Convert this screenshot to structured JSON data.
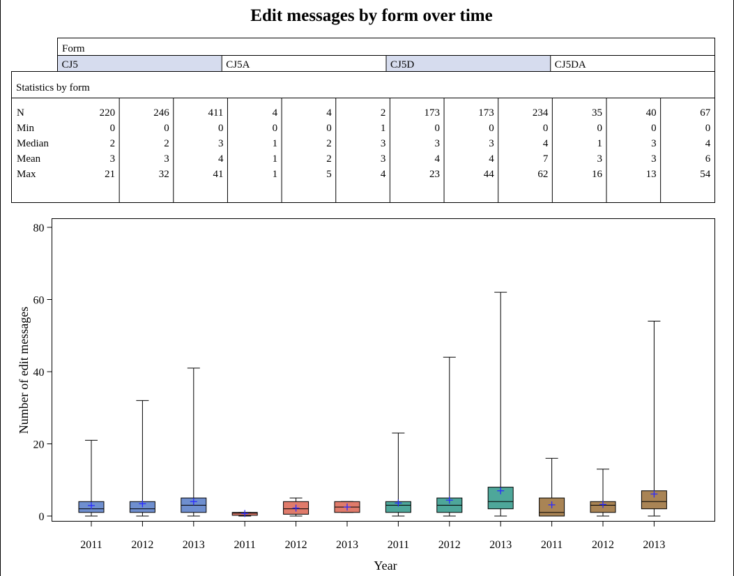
{
  "chart_data": {
    "type": "box",
    "title": "Edit messages by form over time",
    "panel_header": "Form",
    "forms": [
      {
        "name": "CJ5",
        "highlighted": true
      },
      {
        "name": "CJ5A",
        "highlighted": false
      },
      {
        "name": "CJ5D",
        "highlighted": true
      },
      {
        "name": "CJ5DA",
        "highlighted": false
      }
    ],
    "stats_header": "Statistics by form",
    "stat_labels": [
      "N",
      "Min",
      "Median",
      "Mean",
      "Max"
    ],
    "categories": [
      "2011",
      "2012",
      "2013",
      "2011",
      "2012",
      "2013",
      "2011",
      "2012",
      "2013",
      "2011",
      "2012",
      "2013"
    ],
    "stats": {
      "N": [
        220,
        246,
        411,
        4,
        4,
        2,
        173,
        173,
        234,
        35,
        40,
        67
      ],
      "Min": [
        0,
        0,
        0,
        0,
        0,
        1,
        0,
        0,
        0,
        0,
        0,
        0
      ],
      "Median": [
        2,
        2,
        3,
        1,
        2,
        3,
        3,
        3,
        4,
        1,
        3,
        4
      ],
      "Mean": [
        3,
        3,
        4,
        1,
        2,
        3,
        4,
        4,
        7,
        3,
        3,
        6
      ],
      "Max": [
        21,
        32,
        41,
        1,
        5,
        4,
        23,
        44,
        62,
        16,
        13,
        54
      ]
    },
    "boxes": [
      {
        "q1": 1,
        "median": 2,
        "q3": 4,
        "mean": 2.9,
        "min": 0,
        "max": 21
      },
      {
        "q1": 1,
        "median": 2,
        "q3": 4,
        "mean": 3.4,
        "min": 0,
        "max": 32
      },
      {
        "q1": 1,
        "median": 3,
        "q3": 5,
        "mean": 4.0,
        "min": 0,
        "max": 41
      },
      {
        "q1": 0.2,
        "median": 0.8,
        "q3": 1,
        "mean": 0.7,
        "min": 0,
        "max": 1
      },
      {
        "q1": 0.5,
        "median": 2,
        "q3": 4,
        "mean": 2.2,
        "min": 0,
        "max": 5
      },
      {
        "q1": 1,
        "median": 2.5,
        "q3": 4,
        "mean": 2.5,
        "min": 1,
        "max": 4
      },
      {
        "q1": 1,
        "median": 3,
        "q3": 4,
        "mean": 3.6,
        "min": 0,
        "max": 23
      },
      {
        "q1": 1,
        "median": 3,
        "q3": 5,
        "mean": 4.4,
        "min": 0,
        "max": 44
      },
      {
        "q1": 2,
        "median": 4,
        "q3": 8,
        "mean": 7.0,
        "min": 0,
        "max": 62
      },
      {
        "q1": 0,
        "median": 1,
        "q3": 5,
        "mean": 3.1,
        "min": 0,
        "max": 16
      },
      {
        "q1": 1,
        "median": 3,
        "q3": 4,
        "mean": 3.2,
        "min": 0,
        "max": 13
      },
      {
        "q1": 2,
        "median": 4,
        "q3": 7,
        "mean": 6.1,
        "min": 0,
        "max": 54
      }
    ],
    "group_colors": [
      "#6f8fcf",
      "#e07b6b",
      "#4ea79a",
      "#a98455"
    ],
    "mean_marker_color": "#2a2aff",
    "xlabel": "Year",
    "ylabel": "Number of edit messages",
    "ylim": [
      0,
      80
    ],
    "yticks": [
      0,
      20,
      40,
      60,
      80
    ]
  }
}
